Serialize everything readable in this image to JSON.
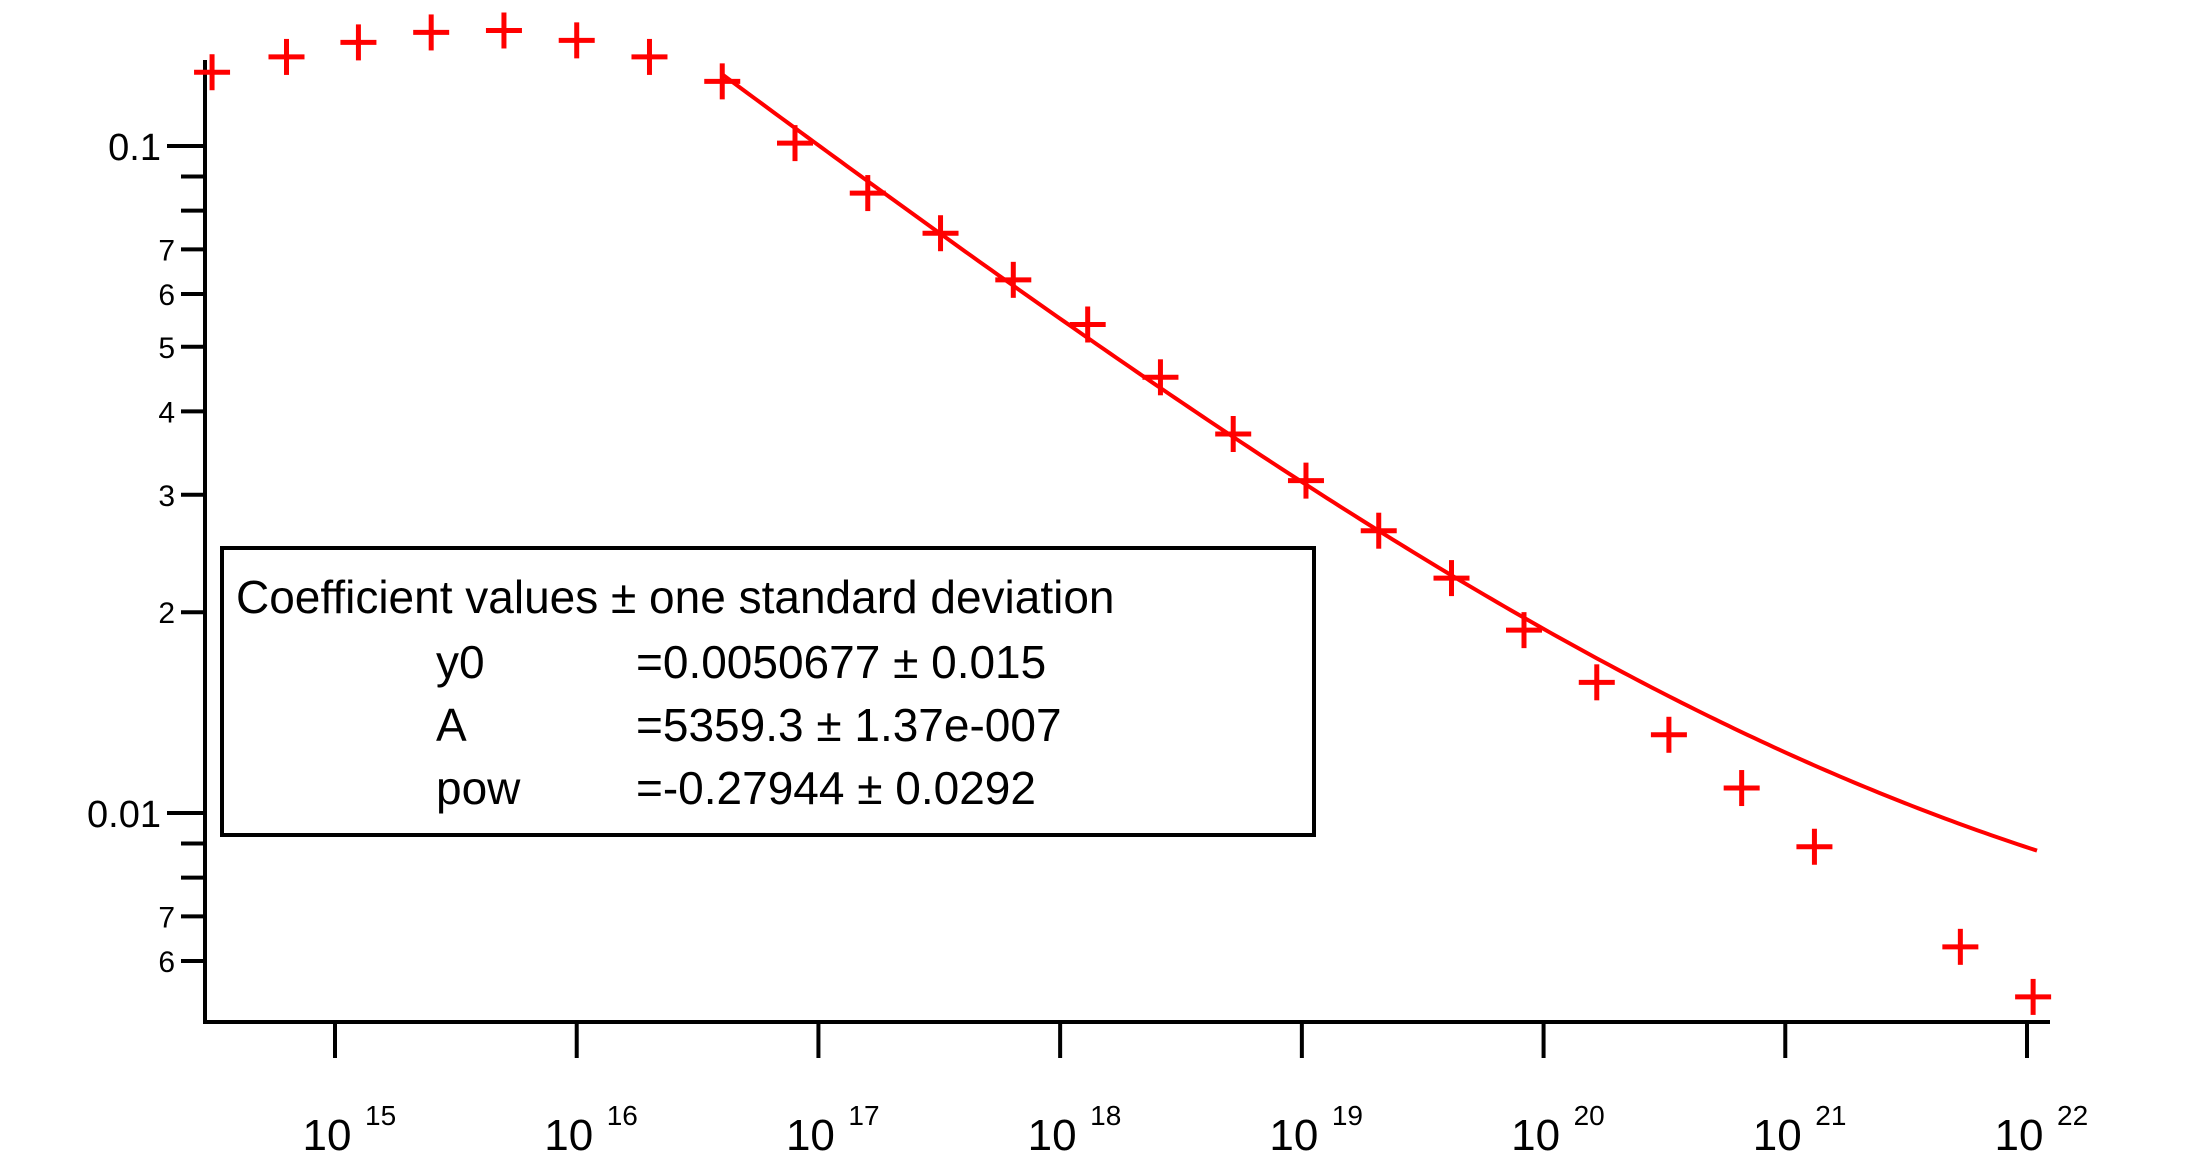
{
  "chart_data": {
    "type": "scatter",
    "x_scale": "log",
    "y_scale": "log",
    "xlim": [
      220000000000000.0,
      1.2e+22
    ],
    "ylim": [
      0.0051,
      0.16
    ],
    "grid": false,
    "legend_placement": "lower-left",
    "series_color": "#ff0000",
    "x_ticks": [
      {
        "value": 1000000000000000.0,
        "base": "10",
        "exp": "15"
      },
      {
        "value": 1e+16,
        "base": "10",
        "exp": "16"
      },
      {
        "value": 1e+17,
        "base": "10",
        "exp": "17"
      },
      {
        "value": 1e+18,
        "base": "10",
        "exp": "18"
      },
      {
        "value": 1e+19,
        "base": "10",
        "exp": "19"
      },
      {
        "value": 1e+20,
        "base": "10",
        "exp": "20"
      },
      {
        "value": 1e+21,
        "base": "10",
        "exp": "21"
      },
      {
        "value": 1e+22,
        "base": "10",
        "exp": "22"
      }
    ],
    "y_major_ticks": [
      {
        "value": 0.1,
        "label": "0.1"
      },
      {
        "value": 0.01,
        "label": "0.01"
      }
    ],
    "y_minor_ticks": [
      {
        "value": 0.07,
        "label": "7"
      },
      {
        "value": 0.06,
        "label": "6"
      },
      {
        "value": 0.05,
        "label": "5"
      },
      {
        "value": 0.04,
        "label": "4"
      },
      {
        "value": 0.03,
        "label": "3"
      },
      {
        "value": 0.02,
        "label": "2"
      },
      {
        "value": 0.09,
        "label": ""
      },
      {
        "value": 0.08,
        "label": ""
      },
      {
        "value": 0.007,
        "label": "7"
      },
      {
        "value": 0.006,
        "label": "6"
      },
      {
        "value": 0.009,
        "label": ""
      },
      {
        "value": 0.008,
        "label": ""
      }
    ],
    "data_points": [
      {
        "x": 310000000000000.0,
        "y": 0.129
      },
      {
        "x": 630000000000000.0,
        "y": 0.136
      },
      {
        "x": 1250000000000000.0,
        "y": 0.143
      },
      {
        "x": 2500000000000000.0,
        "y": 0.148
      },
      {
        "x": 5000000000000000.0,
        "y": 0.149
      },
      {
        "x": 1e+16,
        "y": 0.144
      },
      {
        "x": 2e+16,
        "y": 0.136
      },
      {
        "x": 4e+16,
        "y": 0.125
      },
      {
        "x": 8e+16,
        "y": 0.101
      },
      {
        "x": 1.6e+17,
        "y": 0.085
      },
      {
        "x": 3.2e+17,
        "y": 0.074
      },
      {
        "x": 6.4e+17,
        "y": 0.063
      },
      {
        "x": 1.3e+18,
        "y": 0.054
      },
      {
        "x": 2.6e+18,
        "y": 0.045
      },
      {
        "x": 5.2e+18,
        "y": 0.037
      },
      {
        "x": 1.04e+19,
        "y": 0.0315
      },
      {
        "x": 2.08e+19,
        "y": 0.0265
      },
      {
        "x": 4.16e+19,
        "y": 0.0225
      },
      {
        "x": 8.3e+19,
        "y": 0.0188
      },
      {
        "x": 1.66e+20,
        "y": 0.0157
      },
      {
        "x": 3.3e+20,
        "y": 0.0131
      },
      {
        "x": 6.6e+20,
        "y": 0.0109
      },
      {
        "x": 1.32e+21,
        "y": 0.0089
      },
      {
        "x": 5.3e+21,
        "y": 0.0063
      },
      {
        "x": 1.06e+22,
        "y": 0.0053
      }
    ],
    "fit": {
      "y0": 0.0050677,
      "A": 5359.3,
      "pow": -0.27944,
      "x_range": [
        4e+16,
        1.1e+22
      ]
    },
    "legend": {
      "title": "Coefficient values ± one standard deviation",
      "rows": [
        {
          "name": "y0",
          "value": "=0.0050677 ± 0.015"
        },
        {
          "name": "A",
          "value": "=5359.3 ± 1.37e-007"
        },
        {
          "name": "pow",
          "value": "=-0.27944 ± 0.0292"
        }
      ]
    }
  }
}
